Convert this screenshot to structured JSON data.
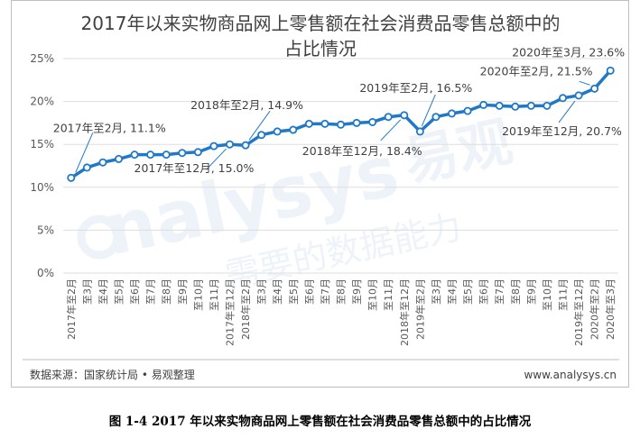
{
  "title_line1": "2017年以来实物商品网上零售额在社会消费品零售总额中的",
  "title_line2": "占比情况",
  "source": "数据来源：国家统计局 • 易观整理",
  "website": "www.analysys.cn",
  "caption": "图 1-4  2017 年以来实物商品网上零售额在社会消费品零售总额中的占比情况",
  "watermark": {
    "brand_latin": "nalysys",
    "brand_cn": "易观",
    "slogan": "需要的数据能力",
    "color": "#eef3f9"
  },
  "colors": {
    "line": "#1f78c8",
    "marker_fill": "#ffffff",
    "grid": "#dddddd",
    "axis_text": "#595959",
    "annotation": "#404040",
    "leader": "#1f78c8"
  },
  "chart_data": {
    "type": "line",
    "ylim": [
      0,
      25
    ],
    "y_ticks": [
      "0%",
      "5%",
      "10%",
      "15%",
      "20%",
      "25%"
    ],
    "y_tick_values": [
      0,
      5,
      10,
      15,
      20,
      25
    ],
    "categories": [
      "2017年至2月",
      "至3月",
      "至4月",
      "至5月",
      "至6月",
      "至7月",
      "至8月",
      "至9月",
      "至10月",
      "至11月",
      "2017年至12月",
      "2018年至2月",
      "至3月",
      "至4月",
      "至5月",
      "至6月",
      "至7月",
      "至8月",
      "至9月",
      "至10月",
      "至11月",
      "2018年至12月",
      "2019年至2月",
      "至3月",
      "至4月",
      "至5月",
      "至6月",
      "至7月",
      "至8月",
      "至9月",
      "至10月",
      "至11月",
      "2019年至12月",
      "2020年至2月",
      "2020年至3月"
    ],
    "series": [
      {
        "values": [
          11.1,
          12.3,
          12.9,
          13.3,
          13.8,
          13.8,
          13.8,
          14.0,
          14.1,
          14.8,
          15.0,
          14.9,
          16.1,
          16.5,
          16.7,
          17.4,
          17.4,
          17.3,
          17.5,
          17.6,
          18.2,
          18.4,
          16.5,
          18.2,
          18.6,
          18.9,
          19.6,
          19.5,
          19.4,
          19.5,
          19.5,
          20.4,
          20.7,
          21.5,
          23.6
        ]
      }
    ],
    "annotations": [
      {
        "index": 0,
        "text": "2017年至2月, 11.1%"
      },
      {
        "index": 10,
        "text": "2017年至12月, 15.0%"
      },
      {
        "index": 11,
        "text": "2018年至2月, 14.9%"
      },
      {
        "index": 21,
        "text": "2018年至12月, 18.4%"
      },
      {
        "index": 22,
        "text": "2019年至2月, 16.5%"
      },
      {
        "index": 32,
        "text": "2019年至12月, 20.7%"
      },
      {
        "index": 33,
        "text": "2020年至2月, 21.5%"
      },
      {
        "index": 34,
        "text": "2020年至3月, 23.6%"
      }
    ],
    "grid": true,
    "legend": "none"
  }
}
